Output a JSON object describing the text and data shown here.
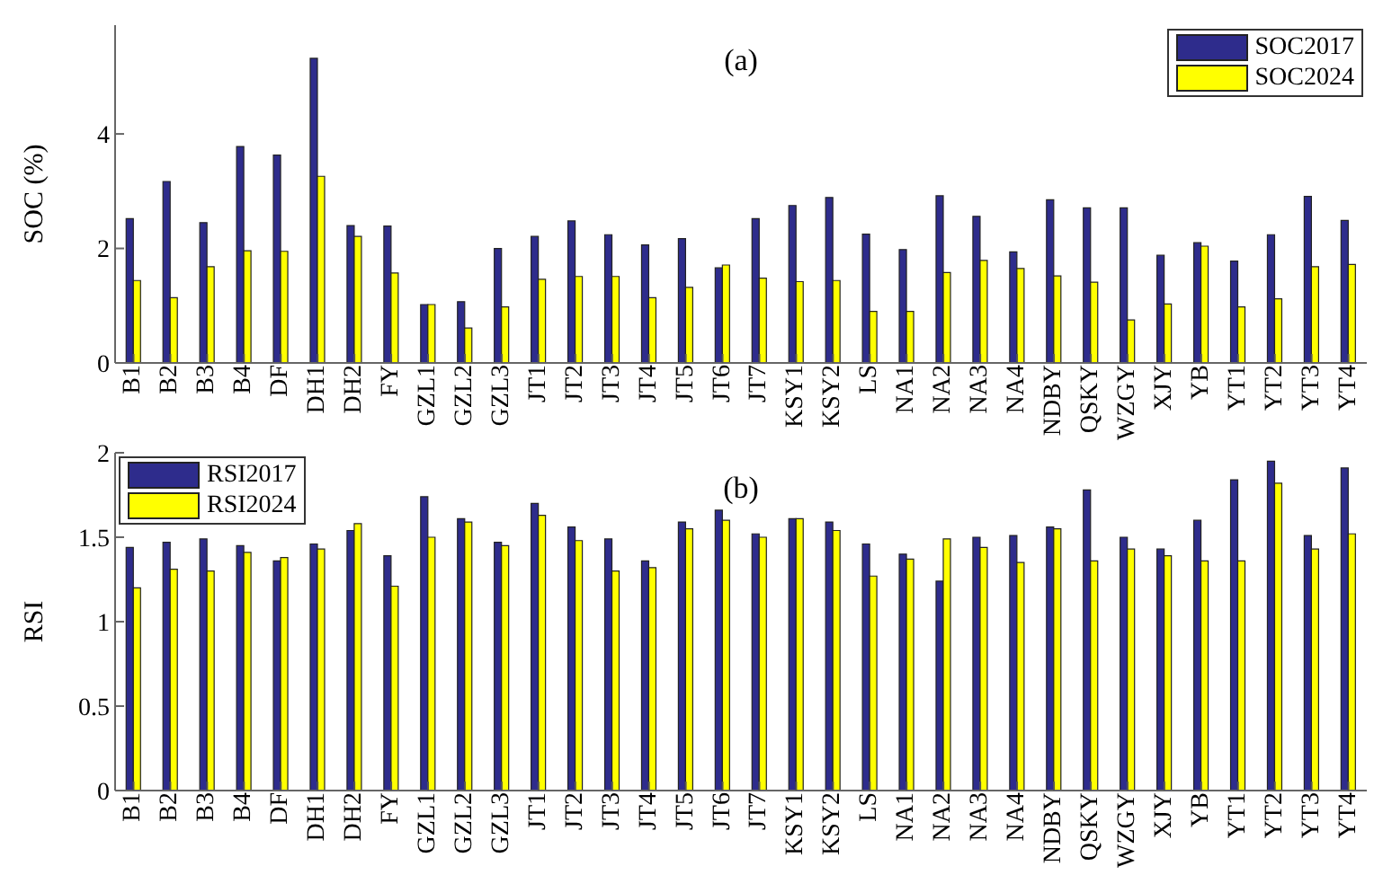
{
  "chart_data": [
    {
      "type": "bar",
      "annotations": [
        "(a)"
      ],
      "ylabel": "SOC (%)",
      "categories": [
        "B1",
        "B2",
        "B3",
        "B4",
        "DF",
        "DH1",
        "DH2",
        "FY",
        "GZL1",
        "GZL2",
        "GZL3",
        "JT1",
        "JT2",
        "JT3",
        "JT4",
        "JT5",
        "JT6",
        "JT7",
        "KSY1",
        "KSY2",
        "LS",
        "NA1",
        "NA2",
        "NA3",
        "NA4",
        "NDBY",
        "QSKY",
        "WZGY",
        "XJY",
        "YB",
        "YT1",
        "YT2",
        "YT3",
        "YT4"
      ],
      "series": [
        {
          "name": "SOC2017",
          "color": "#2e2c8c",
          "values": [
            2.52,
            3.17,
            2.45,
            3.78,
            3.63,
            5.32,
            2.4,
            2.39,
            1.02,
            1.07,
            2.0,
            2.21,
            2.48,
            2.24,
            2.06,
            2.17,
            1.66,
            2.52,
            2.75,
            2.89,
            2.25,
            1.98,
            2.92,
            2.56,
            1.94,
            2.85,
            2.71,
            2.71,
            1.88,
            2.1,
            1.78,
            2.24,
            2.91,
            2.49
          ]
        },
        {
          "name": "SOC2024",
          "color": "#ffff00",
          "values": [
            1.44,
            1.14,
            1.68,
            1.96,
            1.95,
            3.26,
            2.21,
            1.57,
            1.02,
            0.61,
            0.98,
            1.46,
            1.51,
            1.51,
            1.14,
            1.32,
            1.71,
            1.48,
            1.42,
            1.44,
            0.9,
            0.9,
            1.58,
            1.79,
            1.65,
            1.52,
            1.41,
            0.75,
            1.03,
            2.04,
            0.98,
            1.12,
            1.68,
            1.72
          ]
        }
      ],
      "ylim": [
        0,
        5.9
      ],
      "yticks": [
        0,
        2,
        4
      ],
      "grid": false,
      "legend": "top right"
    },
    {
      "type": "bar",
      "annotations": [
        "(b)"
      ],
      "ylabel": "RSI",
      "categories": [
        "B1",
        "B2",
        "B3",
        "B4",
        "DF",
        "DH1",
        "DH2",
        "FY",
        "GZL1",
        "GZL2",
        "GZL3",
        "JT1",
        "JT2",
        "JT3",
        "JT4",
        "JT5",
        "JT6",
        "JT7",
        "KSY1",
        "KSY2",
        "LS",
        "NA1",
        "NA2",
        "NA3",
        "NA4",
        "NDBY",
        "QSKY",
        "WZGY",
        "XJY",
        "YB",
        "YT1",
        "YT2",
        "YT3",
        "YT4"
      ],
      "series": [
        {
          "name": "RSI2017",
          "color": "#2e2c8c",
          "values": [
            1.44,
            1.47,
            1.49,
            1.45,
            1.36,
            1.46,
            1.54,
            1.39,
            1.74,
            1.61,
            1.47,
            1.7,
            1.56,
            1.49,
            1.36,
            1.59,
            1.66,
            1.52,
            1.61,
            1.59,
            1.46,
            1.4,
            1.24,
            1.5,
            1.51,
            1.56,
            1.78,
            1.5,
            1.43,
            1.6,
            1.84,
            1.95,
            1.51,
            1.91
          ]
        },
        {
          "name": "RSI2024",
          "color": "#ffff00",
          "values": [
            1.2,
            1.31,
            1.3,
            1.41,
            1.38,
            1.43,
            1.58,
            1.21,
            1.5,
            1.59,
            1.45,
            1.63,
            1.48,
            1.3,
            1.32,
            1.55,
            1.6,
            1.5,
            1.61,
            1.54,
            1.27,
            1.37,
            1.49,
            1.44,
            1.35,
            1.55,
            1.36,
            1.43,
            1.39,
            1.36,
            1.36,
            1.82,
            1.43,
            1.52
          ]
        }
      ],
      "ylim": [
        0,
        2
      ],
      "yticks": [
        0,
        0.5,
        1,
        1.5,
        2
      ],
      "grid": false,
      "legend": "top left"
    }
  ]
}
